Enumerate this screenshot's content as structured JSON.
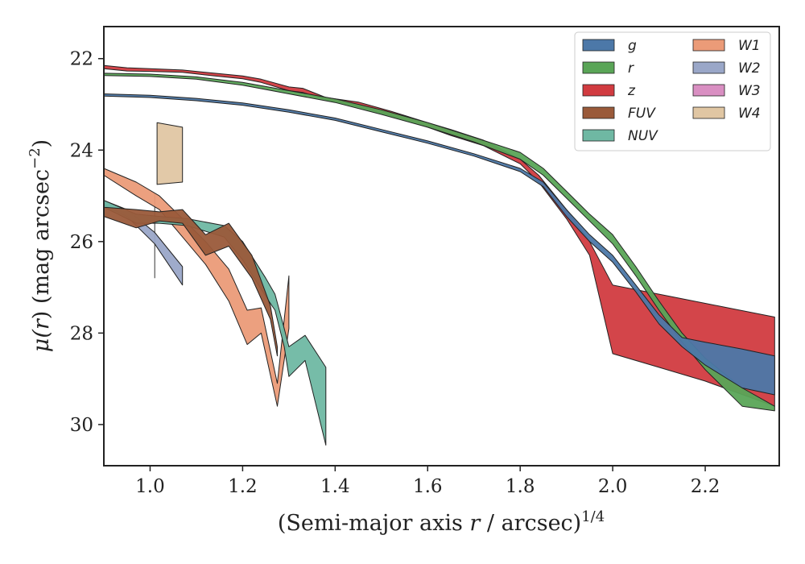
{
  "chart_data": {
    "type": "area",
    "xlabel": "(Semi-major axis r / arcsec)^1/4",
    "xlabel_parts": {
      "prefix": "(Semi-major axis ",
      "var": "r",
      "mid": " / arcsec)",
      "sup": "1/4"
    },
    "ylabel": "μ(r) (mag arcsec^−2)",
    "ylabel_parts": {
      "mu": "μ(",
      "var": "r",
      "rest": ") (mag arcsec",
      "sup": "−2",
      "close": ")"
    },
    "xlim": [
      0.9,
      2.36
    ],
    "ylim": [
      30.9,
      21.3
    ],
    "y_inverted": true,
    "x_ticks": [
      "1.0",
      "1.2",
      "1.4",
      "1.6",
      "1.8",
      "2.0",
      "2.2"
    ],
    "y_ticks": [
      "22",
      "24",
      "26",
      "28",
      "30"
    ],
    "legend_position": "top-right",
    "grid": false,
    "series": [
      {
        "name": "g",
        "color": "#4c78a8",
        "upper": [
          [
            0.9,
            22.77
          ],
          [
            1.0,
            22.8
          ],
          [
            1.1,
            22.87
          ],
          [
            1.2,
            22.97
          ],
          [
            1.3,
            23.12
          ],
          [
            1.4,
            23.3
          ],
          [
            1.5,
            23.55
          ],
          [
            1.6,
            23.8
          ],
          [
            1.7,
            24.08
          ],
          [
            1.8,
            24.4
          ],
          [
            1.85,
            24.7
          ],
          [
            1.9,
            25.3
          ],
          [
            1.95,
            25.85
          ],
          [
            2.0,
            26.3
          ],
          [
            2.05,
            26.95
          ],
          [
            2.1,
            27.6
          ],
          [
            2.15,
            28.1
          ],
          [
            2.2,
            28.2
          ],
          [
            2.28,
            28.35
          ],
          [
            2.35,
            28.5
          ]
        ],
        "lower": [
          [
            0.9,
            22.82
          ],
          [
            1.0,
            22.85
          ],
          [
            1.1,
            22.92
          ],
          [
            1.2,
            23.02
          ],
          [
            1.3,
            23.17
          ],
          [
            1.4,
            23.35
          ],
          [
            1.5,
            23.6
          ],
          [
            1.6,
            23.85
          ],
          [
            1.7,
            24.13
          ],
          [
            1.8,
            24.47
          ],
          [
            1.85,
            24.8
          ],
          [
            1.9,
            25.45
          ],
          [
            1.95,
            26.0
          ],
          [
            2.0,
            26.45
          ],
          [
            2.05,
            27.1
          ],
          [
            2.1,
            27.8
          ],
          [
            2.15,
            28.3
          ],
          [
            2.2,
            28.7
          ],
          [
            2.28,
            29.2
          ],
          [
            2.35,
            29.35
          ]
        ]
      },
      {
        "name": "r",
        "color": "#5aa557",
        "upper": [
          [
            0.9,
            22.32
          ],
          [
            1.0,
            22.34
          ],
          [
            1.1,
            22.4
          ],
          [
            1.2,
            22.52
          ],
          [
            1.3,
            22.7
          ],
          [
            1.4,
            22.88
          ],
          [
            1.5,
            23.12
          ],
          [
            1.6,
            23.4
          ],
          [
            1.7,
            23.72
          ],
          [
            1.8,
            24.05
          ],
          [
            1.85,
            24.4
          ],
          [
            1.9,
            24.9
          ],
          [
            1.95,
            25.4
          ],
          [
            2.0,
            25.85
          ],
          [
            2.05,
            26.55
          ],
          [
            2.1,
            27.3
          ],
          [
            2.15,
            28.0
          ],
          [
            2.2,
            28.55
          ],
          [
            2.28,
            29.2
          ],
          [
            2.35,
            29.6
          ]
        ],
        "lower": [
          [
            0.9,
            22.37
          ],
          [
            1.0,
            22.39
          ],
          [
            1.1,
            22.45
          ],
          [
            1.2,
            22.58
          ],
          [
            1.3,
            22.77
          ],
          [
            1.4,
            22.96
          ],
          [
            1.5,
            23.22
          ],
          [
            1.6,
            23.5
          ],
          [
            1.7,
            23.82
          ],
          [
            1.8,
            24.2
          ],
          [
            1.85,
            24.55
          ],
          [
            1.9,
            25.05
          ],
          [
            1.95,
            25.55
          ],
          [
            2.0,
            26.05
          ],
          [
            2.05,
            26.75
          ],
          [
            2.1,
            27.5
          ],
          [
            2.15,
            28.2
          ],
          [
            2.2,
            28.8
          ],
          [
            2.28,
            29.6
          ],
          [
            2.35,
            29.7
          ]
        ]
      },
      {
        "name": "z",
        "color": "#d13b40",
        "upper": [
          [
            0.9,
            22.15
          ],
          [
            0.95,
            22.2
          ],
          [
            1.0,
            22.22
          ],
          [
            1.07,
            22.25
          ],
          [
            1.14,
            22.32
          ],
          [
            1.2,
            22.38
          ],
          [
            1.24,
            22.45
          ],
          [
            1.3,
            22.62
          ],
          [
            1.33,
            22.65
          ],
          [
            1.38,
            22.85
          ],
          [
            1.45,
            22.95
          ],
          [
            1.52,
            23.15
          ],
          [
            1.6,
            23.4
          ],
          [
            1.65,
            23.55
          ],
          [
            1.72,
            23.78
          ],
          [
            1.8,
            24.2
          ],
          [
            1.84,
            24.55
          ],
          [
            1.9,
            25.3
          ],
          [
            1.95,
            26.0
          ],
          [
            2.0,
            26.95
          ],
          [
            2.1,
            27.15
          ],
          [
            2.2,
            27.35
          ],
          [
            2.35,
            27.65
          ]
        ],
        "lower": [
          [
            0.9,
            22.22
          ],
          [
            0.95,
            22.27
          ],
          [
            1.0,
            22.28
          ],
          [
            1.07,
            22.3
          ],
          [
            1.14,
            22.38
          ],
          [
            1.2,
            22.44
          ],
          [
            1.24,
            22.52
          ],
          [
            1.3,
            22.7
          ],
          [
            1.33,
            22.74
          ],
          [
            1.38,
            22.9
          ],
          [
            1.45,
            23.05
          ],
          [
            1.52,
            23.25
          ],
          [
            1.6,
            23.5
          ],
          [
            1.65,
            23.68
          ],
          [
            1.72,
            23.9
          ],
          [
            1.8,
            24.3
          ],
          [
            1.84,
            24.7
          ],
          [
            1.9,
            25.5
          ],
          [
            1.95,
            26.3
          ],
          [
            2.0,
            28.45
          ],
          [
            2.1,
            28.75
          ],
          [
            2.2,
            29.05
          ],
          [
            2.35,
            29.6
          ]
        ]
      },
      {
        "name": "FUV",
        "color": "#9a5a3a",
        "upper": [
          [
            0.9,
            25.25
          ],
          [
            0.97,
            25.3
          ],
          [
            1.02,
            25.35
          ],
          [
            1.07,
            25.3
          ],
          [
            1.12,
            25.85
          ],
          [
            1.17,
            25.6
          ],
          [
            1.22,
            26.3
          ],
          [
            1.26,
            27.4
          ],
          [
            1.275,
            28.3
          ]
        ],
        "lower": [
          [
            0.9,
            25.45
          ],
          [
            0.97,
            25.7
          ],
          [
            1.02,
            25.55
          ],
          [
            1.07,
            25.6
          ],
          [
            1.12,
            26.3
          ],
          [
            1.17,
            26.1
          ],
          [
            1.22,
            26.8
          ],
          [
            1.26,
            27.7
          ],
          [
            1.275,
            28.5
          ]
        ]
      },
      {
        "name": "NUV",
        "color": "#6fb8a3",
        "upper": [
          [
            0.9,
            25.1
          ],
          [
            0.97,
            25.4
          ],
          [
            1.02,
            25.45
          ],
          [
            1.08,
            25.5
          ],
          [
            1.16,
            25.65
          ],
          [
            1.2,
            26.0
          ],
          [
            1.25,
            26.8
          ],
          [
            1.27,
            27.15
          ],
          [
            1.29,
            27.9
          ],
          [
            1.3,
            28.3
          ],
          [
            1.335,
            28.05
          ],
          [
            1.38,
            28.75
          ]
        ],
        "lower": [
          [
            0.9,
            25.25
          ],
          [
            0.97,
            25.6
          ],
          [
            1.02,
            25.6
          ],
          [
            1.08,
            25.65
          ],
          [
            1.16,
            25.9
          ],
          [
            1.2,
            26.4
          ],
          [
            1.25,
            27.2
          ],
          [
            1.27,
            27.5
          ],
          [
            1.29,
            28.3
          ],
          [
            1.3,
            28.95
          ],
          [
            1.335,
            28.6
          ],
          [
            1.38,
            30.45
          ]
        ]
      },
      {
        "name": "W1",
        "color": "#eb9b78",
        "upper": [
          [
            0.9,
            24.4
          ],
          [
            0.97,
            24.7
          ],
          [
            1.02,
            25.0
          ],
          [
            1.07,
            25.5
          ],
          [
            1.12,
            26.0
          ],
          [
            1.17,
            26.6
          ],
          [
            1.21,
            27.5
          ],
          [
            1.24,
            27.45
          ],
          [
            1.275,
            29.1
          ],
          [
            1.3,
            26.75
          ]
        ],
        "lower": [
          [
            0.9,
            24.55
          ],
          [
            0.97,
            25.0
          ],
          [
            1.02,
            25.3
          ],
          [
            1.07,
            25.9
          ],
          [
            1.12,
            26.5
          ],
          [
            1.17,
            27.3
          ],
          [
            1.21,
            28.25
          ],
          [
            1.24,
            28.0
          ],
          [
            1.275,
            29.6
          ],
          [
            1.3,
            27.9
          ]
        ]
      },
      {
        "name": "W2",
        "color": "#9aa7c8",
        "upper": [
          [
            0.9,
            25.1
          ],
          [
            0.95,
            25.3
          ],
          [
            1.01,
            25.8
          ],
          [
            1.07,
            26.55
          ]
        ],
        "lower": [
          [
            0.9,
            25.2
          ],
          [
            0.95,
            25.45
          ],
          [
            1.01,
            26.05
          ],
          [
            1.07,
            26.95
          ]
        ]
      },
      {
        "name": "W3",
        "color": "#d98fc2",
        "upper": [
          [
            1.01,
            24.95
          ]
        ],
        "lower": [
          [
            1.01,
            26.8
          ]
        ]
      },
      {
        "name": "W4",
        "color": "#e0c6a3",
        "upper": [
          [
            1.015,
            23.4
          ],
          [
            1.07,
            23.5
          ]
        ],
        "lower": [
          [
            1.015,
            24.75
          ],
          [
            1.07,
            24.7
          ]
        ]
      }
    ]
  }
}
